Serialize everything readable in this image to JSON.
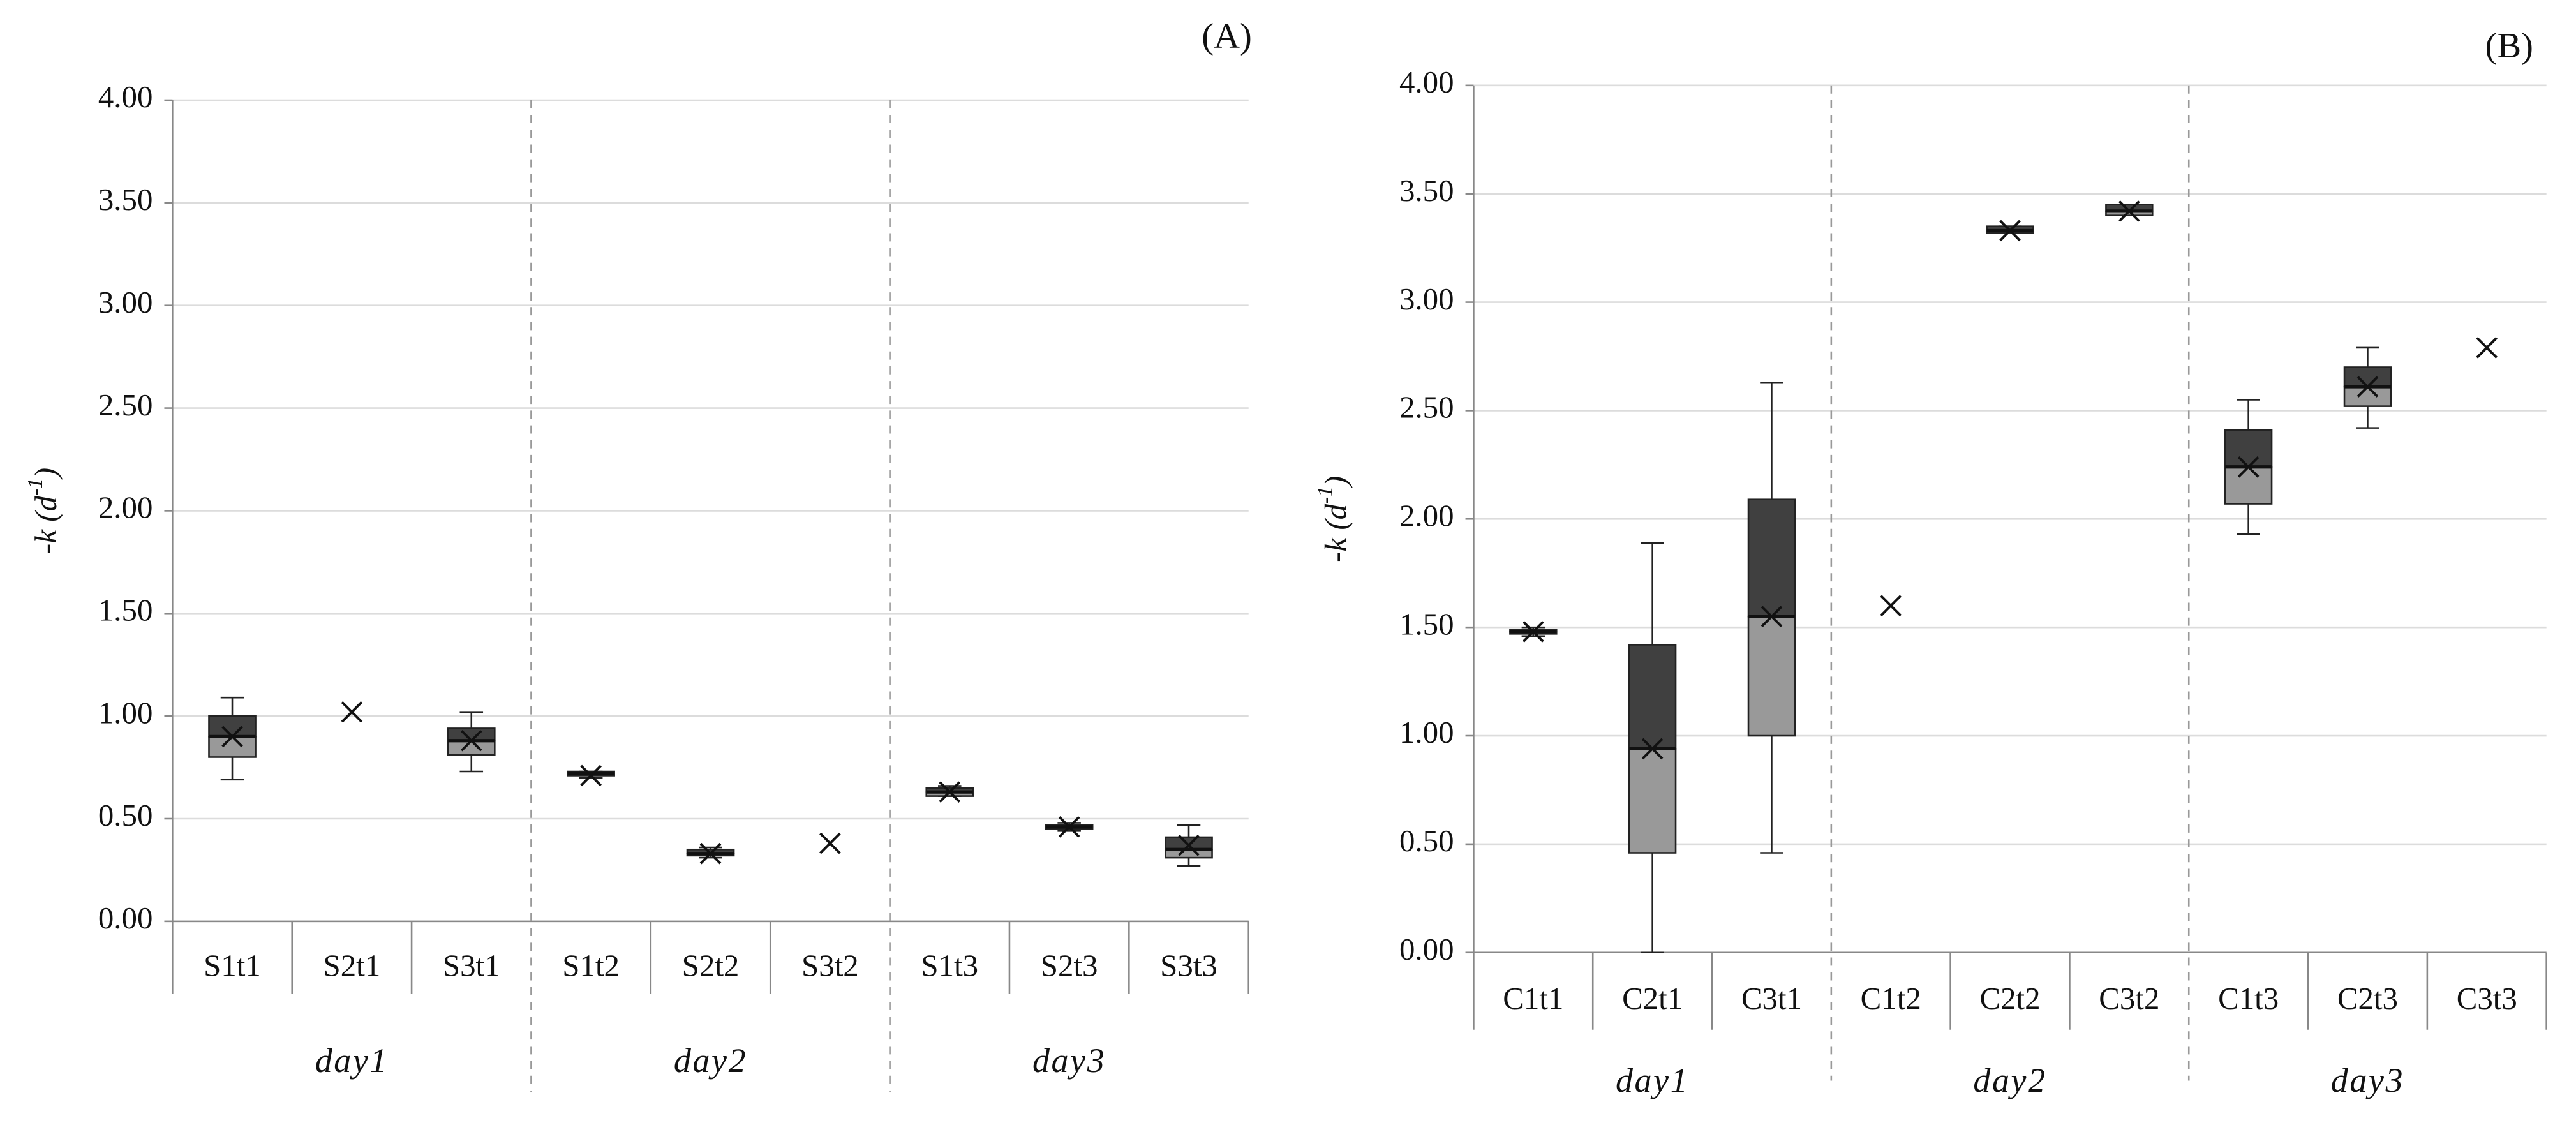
{
  "chart_data": [
    {
      "type": "box",
      "panel": "(A)",
      "y_label": [
        "-k (d",
        "-1",
        ")"
      ],
      "ylim": [
        0,
        4
      ],
      "yticks": [
        {
          "value": 0,
          "label": "0.00"
        },
        {
          "value": 0.5,
          "label": "0.50"
        },
        {
          "value": 1,
          "label": "1.00"
        },
        {
          "value": 1.5,
          "label": "1.50"
        },
        {
          "value": 2,
          "label": "2.00"
        },
        {
          "value": 2.5,
          "label": "2.50"
        },
        {
          "value": 3,
          "label": "3.00"
        },
        {
          "value": 3.5,
          "label": "3.50"
        },
        {
          "value": 4,
          "label": "4.00"
        }
      ],
      "grid": true,
      "groups": [
        "day1",
        "day2",
        "day3"
      ],
      "categories": [
        "S1t1",
        "S2t1",
        "S3t1",
        "S1t2",
        "S2t2",
        "S3t2",
        "S1t3",
        "S2t3",
        "S3t3"
      ],
      "boxes": [
        {
          "min": 0.69,
          "q1": 0.8,
          "median": 0.9,
          "q3": 1.0,
          "max": 1.09,
          "mean": 0.9
        },
        {
          "mean": 1.02
        },
        {
          "min": 0.73,
          "q1": 0.81,
          "median": 0.88,
          "q3": 0.94,
          "max": 1.02,
          "mean": 0.88
        },
        {
          "min": 0.7,
          "q1": 0.71,
          "median": 0.72,
          "q3": 0.73,
          "max": 0.73,
          "mean": 0.71
        },
        {
          "min": 0.31,
          "q1": 0.32,
          "median": 0.33,
          "q3": 0.35,
          "max": 0.36,
          "mean": 0.33
        },
        {
          "mean": 0.38
        },
        {
          "min": 0.61,
          "q1": 0.61,
          "median": 0.63,
          "q3": 0.65,
          "max": 0.66,
          "mean": 0.63
        },
        {
          "min": 0.44,
          "q1": 0.45,
          "median": 0.46,
          "q3": 0.47,
          "max": 0.48,
          "mean": 0.46
        },
        {
          "min": 0.27,
          "q1": 0.31,
          "median": 0.35,
          "q3": 0.41,
          "max": 0.47,
          "mean": 0.37
        }
      ]
    },
    {
      "type": "box",
      "panel": "(B)",
      "y_label": [
        "-k (d",
        "-1",
        ")"
      ],
      "ylim": [
        0,
        4
      ],
      "yticks": [
        {
          "value": 0,
          "label": "0.00"
        },
        {
          "value": 0.5,
          "label": "0.50"
        },
        {
          "value": 1,
          "label": "1.00"
        },
        {
          "value": 1.5,
          "label": "1.50"
        },
        {
          "value": 2,
          "label": "2.00"
        },
        {
          "value": 2.5,
          "label": "2.50"
        },
        {
          "value": 3,
          "label": "3.00"
        },
        {
          "value": 3.5,
          "label": "3.50"
        },
        {
          "value": 4,
          "label": "4.00"
        }
      ],
      "grid": true,
      "groups": [
        "day1",
        "day2",
        "day3"
      ],
      "categories": [
        "C1t1",
        "C2t1",
        "C3t1",
        "C1t2",
        "C2t2",
        "C3t2",
        "C1t3",
        "C2t3",
        "C3t3"
      ],
      "boxes": [
        {
          "min": 1.46,
          "q1": 1.47,
          "median": 1.48,
          "q3": 1.49,
          "max": 1.5,
          "mean": 1.48
        },
        {
          "min": 0,
          "q1": 0.46,
          "median": 0.94,
          "q3": 1.42,
          "max": 1.89,
          "mean": 0.94
        },
        {
          "min": 0.46,
          "q1": 1.0,
          "median": 1.55,
          "q3": 2.09,
          "max": 2.63,
          "mean": 1.55
        },
        {
          "mean": 1.6
        },
        {
          "min": 3.32,
          "q1": 3.32,
          "median": 3.33,
          "q3": 3.35,
          "max": 3.35,
          "mean": 3.33
        },
        {
          "min": 3.4,
          "q1": 3.4,
          "median": 3.42,
          "q3": 3.45,
          "max": 3.45,
          "mean": 3.42
        },
        {
          "min": 1.93,
          "q1": 2.07,
          "median": 2.24,
          "q3": 2.41,
          "max": 2.55,
          "mean": 2.24
        },
        {
          "min": 2.42,
          "q1": 2.52,
          "median": 2.61,
          "q3": 2.7,
          "max": 2.79,
          "mean": 2.61
        },
        {
          "mean": 2.79
        }
      ]
    }
  ]
}
